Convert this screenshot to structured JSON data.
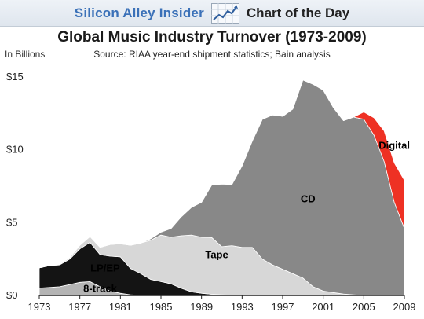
{
  "header": {
    "brand_name": "Silicon Alley Insider",
    "brand_tagline": "Chart of the Day",
    "logo_icon": "rising-line-chart-icon"
  },
  "chart_data": {
    "type": "area",
    "stacked": true,
    "title": "Global Music Industry Turnover (1973-2009)",
    "subtitle": "Source: RIAA year-end shipment statistics; Bain analysis",
    "ylabel": "In Billions",
    "xlabel": "",
    "ylim": [
      0,
      15
    ],
    "xlim": [
      1973,
      2009
    ],
    "y_ticks": [
      0,
      5,
      10,
      15
    ],
    "y_tick_labels": [
      "$0",
      "$5",
      "$10",
      "$15"
    ],
    "x_ticks": [
      1973,
      1977,
      1981,
      1985,
      1989,
      1993,
      1997,
      2001,
      2005,
      2009
    ],
    "grid": false,
    "legend": "none",
    "x": [
      1973,
      1974,
      1975,
      1976,
      1977,
      1978,
      1979,
      1980,
      1981,
      1982,
      1983,
      1984,
      1985,
      1986,
      1987,
      1988,
      1989,
      1990,
      1991,
      1992,
      1993,
      1994,
      1995,
      1996,
      1997,
      1998,
      1999,
      2000,
      2001,
      2002,
      2003,
      2004,
      2005,
      2006,
      2007,
      2008,
      2009
    ],
    "series": [
      {
        "name": "8-track",
        "color": "#b4b4b4",
        "label_at": [
          1979,
          0.25
        ],
        "values": [
          0.5,
          0.55,
          0.6,
          0.75,
          0.9,
          0.95,
          0.6,
          0.3,
          0.15,
          0.05,
          0,
          0,
          0,
          0,
          0,
          0,
          0,
          0,
          0,
          0,
          0,
          0,
          0,
          0,
          0,
          0,
          0,
          0,
          0,
          0,
          0,
          0,
          0,
          0,
          0,
          0,
          0
        ]
      },
      {
        "name": "LP/EP",
        "color": "#141414",
        "label_at": [
          1979.5,
          1.65
        ],
        "values": [
          1.4,
          1.5,
          1.5,
          1.75,
          2.3,
          2.7,
          2.2,
          2.4,
          2.5,
          1.8,
          1.5,
          1.1,
          0.95,
          0.8,
          0.5,
          0.25,
          0.15,
          0.08,
          0.05,
          0.02,
          0,
          0,
          0,
          0,
          0,
          0,
          0,
          0,
          0,
          0,
          0,
          0,
          0,
          0,
          0,
          0,
          0
        ]
      },
      {
        "name": "Tape",
        "color": "#d7d7d7",
        "label_at": [
          1990.5,
          2.55
        ],
        "values": [
          0,
          0,
          0.05,
          0.1,
          0.25,
          0.4,
          0.5,
          0.8,
          0.9,
          1.6,
          2.1,
          2.7,
          3.2,
          3.2,
          3.6,
          3.9,
          3.85,
          3.9,
          3.3,
          3.4,
          3.3,
          3.3,
          2.5,
          2.1,
          1.8,
          1.5,
          1.2,
          0.6,
          0.3,
          0.2,
          0.1,
          0.05,
          0,
          0,
          0,
          0,
          0
        ]
      },
      {
        "name": "CD",
        "color": "#888888",
        "label_at": [
          1999.5,
          6.4
        ],
        "values": [
          0,
          0,
          0,
          0,
          0,
          0,
          0,
          0,
          0,
          0,
          0,
          0.1,
          0.2,
          0.6,
          1.3,
          1.9,
          2.4,
          3.6,
          4.3,
          4.2,
          5.6,
          7.3,
          9.6,
          10.3,
          10.5,
          11.3,
          13.6,
          13.9,
          13.8,
          12.7,
          11.9,
          12.2,
          12.1,
          11.0,
          9.2,
          6.4,
          4.6
        ]
      },
      {
        "name": "Digital",
        "color": "#ee3124",
        "label_at": [
          2008,
          10.05
        ],
        "values": [
          0,
          0,
          0,
          0,
          0,
          0,
          0,
          0,
          0,
          0,
          0,
          0,
          0,
          0,
          0,
          0,
          0,
          0,
          0,
          0,
          0,
          0,
          0,
          0,
          0,
          0,
          0,
          0,
          0,
          0,
          0,
          0,
          0.5,
          1.2,
          2.1,
          2.7,
          3.3
        ]
      }
    ]
  }
}
